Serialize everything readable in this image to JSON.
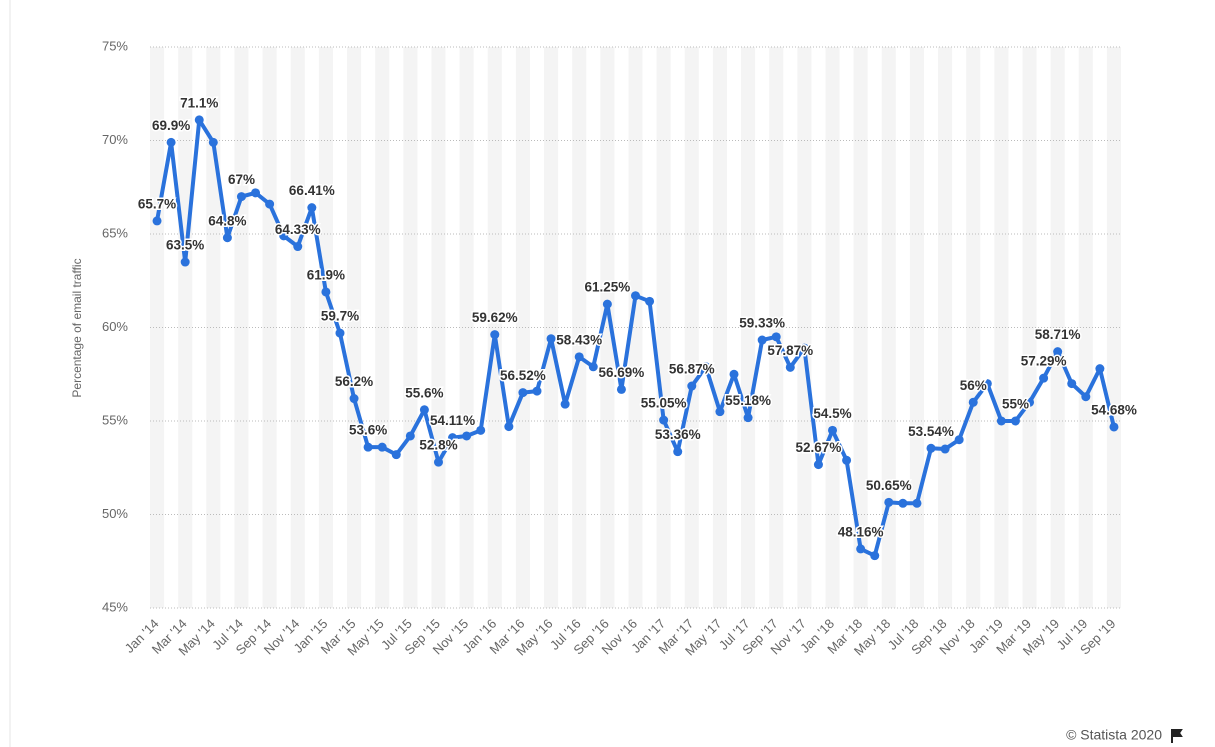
{
  "chart_data": {
    "type": "line",
    "y_label": "Percentage of email traffic",
    "credit": "© Statista 2020",
    "categories": [
      "Jan '14",
      null,
      "Mar '14",
      null,
      "May '14",
      null,
      "Jul '14",
      null,
      "Sep '14",
      null,
      "Nov '14",
      null,
      "Jan '15",
      null,
      "Mar '15",
      null,
      "May '15",
      null,
      "Jul '15",
      null,
      "Sep '15",
      null,
      "Nov '15",
      null,
      "Jan '16",
      null,
      "Mar '16",
      null,
      "May '16",
      null,
      "Jul '16",
      null,
      "Sep '16",
      null,
      "Nov '16",
      null,
      "Jan '17",
      null,
      "Mar '17",
      null,
      "May '17",
      null,
      "Jul '17",
      null,
      "Sep '17",
      null,
      "Nov '17",
      null,
      "Jan '18",
      null,
      "Mar '18",
      null,
      "May '18",
      null,
      "Jul '18",
      null,
      "Sep '18",
      null,
      "Nov '18",
      null,
      "Jan '19",
      null,
      "Mar '19",
      null,
      "May '19",
      null,
      "Jul '19",
      null,
      "Sep '19"
    ],
    "series": [
      {
        "name": "Percentage of email traffic",
        "color": "#2a72dc",
        "values": [
          65.7,
          69.9,
          63.5,
          71.1,
          69.9,
          64.8,
          67,
          67.2,
          66.6,
          64.9,
          64.33,
          66.41,
          61.9,
          59.7,
          56.2,
          53.6,
          53.6,
          53.2,
          54.2,
          55.6,
          52.8,
          54.11,
          54.2,
          54.5,
          59.62,
          54.7,
          56.52,
          56.6,
          59.4,
          55.9,
          58.43,
          57.9,
          61.25,
          56.69,
          61.7,
          61.4,
          55.05,
          53.36,
          56.87,
          57.9,
          55.5,
          57.5,
          55.18,
          59.33,
          59.5,
          57.87,
          58.9,
          52.67,
          54.5,
          52.9,
          48.16,
          47.8,
          50.65,
          50.6,
          50.6,
          53.54,
          53.5,
          54.0,
          56,
          57.0,
          55.0,
          55,
          56.0,
          57.29,
          58.71,
          57.0,
          56.3,
          57.8,
          54.68
        ],
        "value_labels": [
          "65.7%",
          "69.9%",
          "63.5%",
          "71.1%",
          null,
          "64.8%",
          "67%",
          null,
          null,
          null,
          "64.33%",
          "66.41%",
          "61.9%",
          "59.7%",
          "56.2%",
          "53.6%",
          null,
          null,
          null,
          "55.6%",
          "52.8%",
          "54.11%",
          null,
          null,
          "59.62%",
          null,
          "56.52%",
          null,
          null,
          null,
          "58.43%",
          null,
          "61.25%",
          "56.69%",
          null,
          null,
          "55.05%",
          "53.36%",
          "56.87%",
          null,
          null,
          null,
          "55.18%",
          "59.33%",
          null,
          "57.87%",
          null,
          "52.67%",
          "54.5%",
          null,
          "48.16%",
          null,
          "50.65%",
          null,
          null,
          "53.54%",
          null,
          null,
          "56%",
          null,
          null,
          "55%",
          null,
          "57.29%",
          "58.71%",
          null,
          null,
          null,
          "54.68%"
        ]
      }
    ],
    "ylim": [
      45,
      75
    ],
    "yticks": [
      {
        "value": 45,
        "label": "45%"
      },
      {
        "value": 50,
        "label": "50%"
      },
      {
        "value": 55,
        "label": "55%"
      },
      {
        "value": 60,
        "label": "60%"
      },
      {
        "value": 65,
        "label": "65%"
      },
      {
        "value": 70,
        "label": "70%"
      },
      {
        "value": 75,
        "label": "75%"
      }
    ],
    "grid": true
  }
}
